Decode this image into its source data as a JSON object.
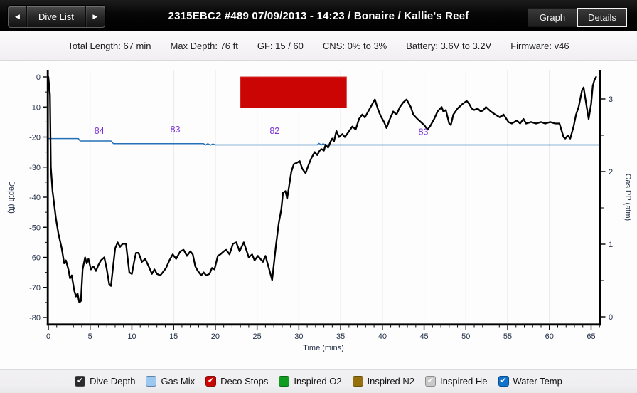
{
  "header": {
    "prev_arrow": "◀",
    "dive_list_label": "Dive List",
    "next_arrow": "▶",
    "title": "2315EBC2 #489 07/09/2013 - 14:23  / Bonaire / Kallie's Reef",
    "graph_label": "Graph",
    "details_label": "Details"
  },
  "info_bar": {
    "items": [
      "Total Length: 67 min",
      "Max Depth: 76 ft",
      "GF: 15 / 60",
      "CNS: 0% to 3%",
      "Battery: 3.6V to 3.2V",
      "Firmware: v46"
    ]
  },
  "chart_data": {
    "type": "line",
    "xlabel": "Time (mins)",
    "ylabel_left": "Depth (ft)",
    "ylabel_right": "Gas PP (atm)",
    "x_range": [
      0,
      66
    ],
    "y_left_range": [
      -80,
      0
    ],
    "y_right_range": [
      0,
      3
    ],
    "x_major_step": 5,
    "x_minor_step": 1,
    "y_left_major_step": 10,
    "y_left_minor_step": 5,
    "y_right_major_step": 1,
    "y_right_minor_step": 0.5,
    "grid": "vertical-only",
    "colors": {
      "depth": "#000000",
      "water_temp": "#2471b8",
      "deco": "#cb0404",
      "deco_edge": "#d83535",
      "temp_label": "#7b2fd6",
      "grid": "#e3e3e3",
      "tick_text": "#25304a",
      "axis": "#000000"
    },
    "deco_stops": [
      {
        "start_min": 23.0,
        "end_min": 35.7,
        "top_ft": 0,
        "bottom_ft": -10.3
      }
    ],
    "water_temp_labels": [
      {
        "min": 6.1,
        "ft": -18.9,
        "text": "84"
      },
      {
        "min": 15.2,
        "ft": -18.5,
        "text": "83"
      },
      {
        "min": 27.1,
        "ft": -18.9,
        "text": "82"
      },
      {
        "min": 44.9,
        "ft": -19.3,
        "text": "83"
      }
    ],
    "series": [
      {
        "name": "Dive Depth",
        "axis": "left",
        "width": 2.3,
        "points": [
          [
            0,
            0
          ],
          [
            0.2,
            -6
          ],
          [
            0.3,
            -30
          ],
          [
            0.5,
            -38
          ],
          [
            0.9,
            -47
          ],
          [
            1.2,
            -52
          ],
          [
            1.6,
            -57
          ],
          [
            1.9,
            -62
          ],
          [
            2.1,
            -61
          ],
          [
            2.4,
            -64
          ],
          [
            2.6,
            -67
          ],
          [
            2.8,
            -66
          ],
          [
            3.1,
            -71
          ],
          [
            3.3,
            -73
          ],
          [
            3.5,
            -72
          ],
          [
            3.7,
            -75
          ],
          [
            3.9,
            -74.5
          ],
          [
            4.1,
            -64
          ],
          [
            4.4,
            -60
          ],
          [
            4.6,
            -62
          ],
          [
            4.8,
            -60.5
          ],
          [
            5.1,
            -64
          ],
          [
            5.4,
            -63
          ],
          [
            5.7,
            -64.5
          ],
          [
            6,
            -62.5
          ],
          [
            6.3,
            -61
          ],
          [
            6.7,
            -60
          ],
          [
            7,
            -64
          ],
          [
            7.3,
            -69
          ],
          [
            7.5,
            -69.5
          ],
          [
            7.8,
            -62
          ],
          [
            8,
            -57
          ],
          [
            8.3,
            -55
          ],
          [
            8.6,
            -56.5
          ],
          [
            8.9,
            -55.5
          ],
          [
            9.3,
            -55.5
          ],
          [
            9.7,
            -65
          ],
          [
            10,
            -65.5
          ],
          [
            10.3,
            -61
          ],
          [
            10.5,
            -58.5
          ],
          [
            10.8,
            -58.5
          ],
          [
            11.2,
            -61.5
          ],
          [
            11.6,
            -60.5
          ],
          [
            12.1,
            -63.5
          ],
          [
            12.4,
            -65.5
          ],
          [
            12.7,
            -64
          ],
          [
            13,
            -65.5
          ],
          [
            13.4,
            -66
          ],
          [
            13.7,
            -65
          ],
          [
            14.1,
            -63.5
          ],
          [
            14.5,
            -61
          ],
          [
            14.9,
            -59
          ],
          [
            15.3,
            -60.5
          ],
          [
            15.8,
            -58
          ],
          [
            16.2,
            -57.5
          ],
          [
            16.6,
            -59.5
          ],
          [
            17,
            -58
          ],
          [
            17.3,
            -59
          ],
          [
            17.6,
            -63
          ],
          [
            17.9,
            -64.5
          ],
          [
            18.3,
            -66
          ],
          [
            18.6,
            -65
          ],
          [
            18.9,
            -66
          ],
          [
            19.3,
            -65.5
          ],
          [
            19.6,
            -63.5
          ],
          [
            19.9,
            -64
          ],
          [
            20.3,
            -59.5
          ],
          [
            20.6,
            -59
          ],
          [
            21,
            -58
          ],
          [
            21.3,
            -57.5
          ],
          [
            21.7,
            -59
          ],
          [
            22.1,
            -55.5
          ],
          [
            22.5,
            -55
          ],
          [
            22.9,
            -58
          ],
          [
            23.4,
            -55
          ],
          [
            23.7,
            -57.5
          ],
          [
            24,
            -60
          ],
          [
            24.4,
            -59
          ],
          [
            24.7,
            -61
          ],
          [
            25.1,
            -59.5
          ],
          [
            25.4,
            -60.5
          ],
          [
            25.7,
            -61.5
          ],
          [
            26,
            -59.5
          ],
          [
            26.4,
            -63.5
          ],
          [
            26.8,
            -67.5
          ],
          [
            27.1,
            -60
          ],
          [
            27.3,
            -55
          ],
          [
            27.6,
            -48.5
          ],
          [
            27.9,
            -44
          ],
          [
            28.1,
            -38.5
          ],
          [
            28.4,
            -38
          ],
          [
            28.6,
            -40.5
          ],
          [
            28.9,
            -35
          ],
          [
            29.1,
            -31.5
          ],
          [
            29.4,
            -29
          ],
          [
            29.8,
            -28.5
          ],
          [
            30.1,
            -28
          ],
          [
            30.4,
            -30.5
          ],
          [
            30.8,
            -32
          ],
          [
            31.2,
            -29
          ],
          [
            31.5,
            -27
          ],
          [
            31.9,
            -25
          ],
          [
            32.2,
            -26
          ],
          [
            32.5,
            -24.5
          ],
          [
            32.7,
            -24
          ],
          [
            33,
            -24.5
          ],
          [
            33.2,
            -22.5
          ],
          [
            33.5,
            -23.5
          ],
          [
            33.8,
            -21.5
          ],
          [
            34,
            -20.5
          ],
          [
            34.2,
            -21.5
          ],
          [
            34.5,
            -18
          ],
          [
            34.8,
            -20
          ],
          [
            35.2,
            -19
          ],
          [
            35.5,
            -20
          ],
          [
            35.9,
            -18.5
          ],
          [
            36.4,
            -16.5
          ],
          [
            36.8,
            -17.5
          ],
          [
            37.2,
            -14
          ],
          [
            37.6,
            -12.5
          ],
          [
            37.9,
            -13.5
          ],
          [
            38.5,
            -10.5
          ],
          [
            38.9,
            -8.5
          ],
          [
            39.1,
            -7.5
          ],
          [
            39.5,
            -11
          ],
          [
            39.8,
            -13
          ],
          [
            40.2,
            -15
          ],
          [
            40.5,
            -17
          ],
          [
            40.9,
            -14
          ],
          [
            41.3,
            -11.5
          ],
          [
            41.7,
            -12.5
          ],
          [
            42.1,
            -10
          ],
          [
            42.5,
            -8.5
          ],
          [
            42.9,
            -7.5
          ],
          [
            43.4,
            -10
          ],
          [
            43.7,
            -12.5
          ],
          [
            44.2,
            -14
          ],
          [
            44.6,
            -15
          ],
          [
            45,
            -16
          ],
          [
            45.4,
            -17.5
          ],
          [
            45.7,
            -16.5
          ],
          [
            46.2,
            -14
          ],
          [
            46.6,
            -11.5
          ],
          [
            47.1,
            -10
          ],
          [
            47.3,
            -11.5
          ],
          [
            47.6,
            -11
          ],
          [
            48,
            -15.5
          ],
          [
            48.2,
            -16
          ],
          [
            48.5,
            -12.5
          ],
          [
            49,
            -10.5
          ],
          [
            49.6,
            -9
          ],
          [
            50.1,
            -8
          ],
          [
            50.4,
            -9
          ],
          [
            50.7,
            -10.5
          ],
          [
            51,
            -11
          ],
          [
            51.4,
            -10.5
          ],
          [
            51.8,
            -11.5
          ],
          [
            52.1,
            -11
          ],
          [
            52.4,
            -10
          ],
          [
            53,
            -11.5
          ],
          [
            53.5,
            -12.5
          ],
          [
            54.1,
            -13.5
          ],
          [
            54.5,
            -12.5
          ],
          [
            55.1,
            -15
          ],
          [
            55.5,
            -15.5
          ],
          [
            56.1,
            -14.5
          ],
          [
            56.5,
            -15.5
          ],
          [
            56.9,
            -14
          ],
          [
            57.2,
            -15.5
          ],
          [
            57.8,
            -15
          ],
          [
            58.4,
            -15.5
          ],
          [
            59,
            -15
          ],
          [
            59.5,
            -15.5
          ],
          [
            60.1,
            -15
          ],
          [
            60.7,
            -15.5
          ],
          [
            61.2,
            -15.5
          ],
          [
            61.7,
            -20
          ],
          [
            61.9,
            -20.5
          ],
          [
            62.2,
            -19.5
          ],
          [
            62.5,
            -20.5
          ],
          [
            62.9,
            -16.5
          ],
          [
            63.2,
            -12.5
          ],
          [
            63.5,
            -10
          ],
          [
            63.9,
            -4.5
          ],
          [
            64.1,
            -3.5
          ],
          [
            64.5,
            -10.5
          ],
          [
            64.7,
            -14
          ],
          [
            65,
            -9
          ],
          [
            65.2,
            -3
          ],
          [
            65.4,
            -1
          ],
          [
            65.6,
            0
          ]
        ]
      },
      {
        "name": "Water Temp",
        "axis": "left",
        "width": 1.5,
        "points": [
          [
            0,
            -20.5
          ],
          [
            3.6,
            -20.5
          ],
          [
            3.8,
            -21.3
          ],
          [
            7.5,
            -21.3
          ],
          [
            7.8,
            -22.2
          ],
          [
            18.6,
            -22.2
          ],
          [
            18.8,
            -22.7
          ],
          [
            19.1,
            -22.2
          ],
          [
            19.4,
            -22.7
          ],
          [
            19.7,
            -22.3
          ],
          [
            20,
            -22.6
          ],
          [
            32.2,
            -22.6
          ],
          [
            32.4,
            -22.1
          ],
          [
            32.7,
            -22.6
          ],
          [
            32.9,
            -22.2
          ],
          [
            33.2,
            -22.6
          ],
          [
            66,
            -22.6
          ]
        ]
      }
    ]
  },
  "legend": {
    "items": [
      {
        "label": "Dive Depth",
        "swatch": "#2b2b2b",
        "border": "#4a4a4a",
        "checked": true,
        "check": "#ffffff"
      },
      {
        "label": "Gas Mix",
        "swatch": "#9cc7ee",
        "border": "#5f82a5",
        "checked": false,
        "check": ""
      },
      {
        "label": "Deco Stops",
        "swatch": "#cc0404",
        "border": "#7c1212",
        "checked": true,
        "check": "#ffffff"
      },
      {
        "label": "Inspired O2",
        "swatch": "#0f9d20",
        "border": "#0a6b17",
        "checked": false,
        "check": ""
      },
      {
        "label": "Inspired N2",
        "swatch": "#96700d",
        "border": "#66500c",
        "checked": false,
        "check": ""
      },
      {
        "label": "Inspired He",
        "swatch": "#c9c9c9",
        "border": "#8d8d8d",
        "checked": true,
        "check": "#fafafa"
      },
      {
        "label": "Water Temp",
        "swatch": "#1273cc",
        "border": "#0c518f",
        "checked": true,
        "check": "#ffffff"
      }
    ]
  }
}
